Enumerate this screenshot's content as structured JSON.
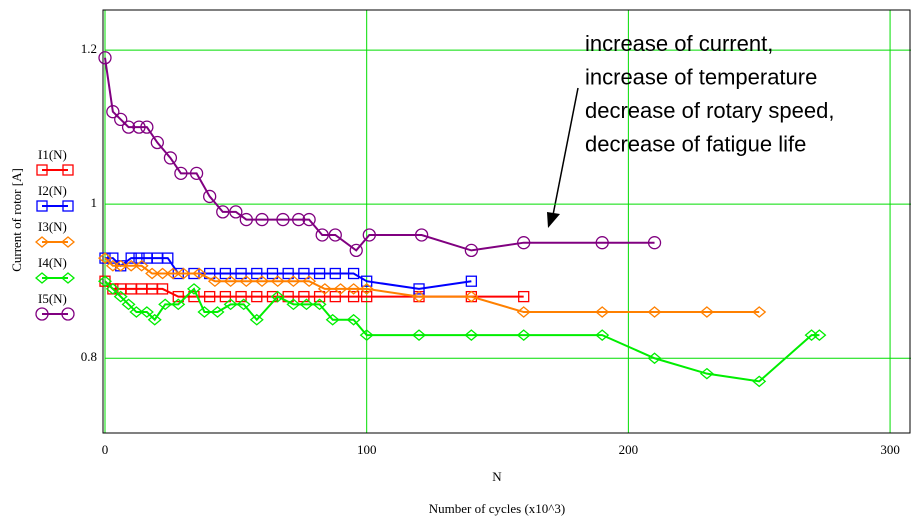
{
  "chart_data": {
    "type": "line",
    "ylabel": "Current of rotor [A]",
    "xlabel": "N",
    "xlabel2": "Number of cycles (x10^3)",
    "annotation": [
      "increase of current,",
      "increase of temperature",
      "decrease of rotary speed,",
      "decrease of fatigue life"
    ],
    "xlim": [
      0,
      308
    ],
    "xticks": [
      0,
      100,
      200,
      300
    ],
    "ylim": [
      0.703,
      1.252
    ],
    "yticks": [
      0.8,
      1,
      1.2
    ],
    "grid": true,
    "series": [
      {
        "name": "I1(N)",
        "color": "#ff0000",
        "marker": "square",
        "x": [
          0,
          3,
          6,
          10,
          14,
          18,
          22,
          28,
          34,
          40,
          46,
          52,
          58,
          64,
          70,
          76,
          82,
          88,
          95,
          100,
          120,
          140,
          160
        ],
        "values": [
          0.9,
          0.89,
          0.89,
          0.89,
          0.89,
          0.89,
          0.89,
          0.88,
          0.88,
          0.88,
          0.88,
          0.88,
          0.88,
          0.88,
          0.88,
          0.88,
          0.88,
          0.88,
          0.88,
          0.88,
          0.88,
          0.88,
          0.88
        ]
      },
      {
        "name": "I2(N)",
        "color": "#0000ff",
        "marker": "square",
        "x": [
          0,
          3,
          6,
          10,
          13,
          16,
          20,
          24,
          28,
          34,
          40,
          46,
          52,
          58,
          64,
          70,
          76,
          82,
          88,
          95,
          100,
          120,
          140
        ],
        "values": [
          0.93,
          0.93,
          0.92,
          0.93,
          0.93,
          0.93,
          0.93,
          0.93,
          0.91,
          0.91,
          0.91,
          0.91,
          0.91,
          0.91,
          0.91,
          0.91,
          0.91,
          0.91,
          0.91,
          0.91,
          0.9,
          0.89,
          0.9
        ]
      },
      {
        "name": "I3(N)",
        "color": "#ff8000",
        "marker": "diamond",
        "x": [
          0,
          3,
          6,
          10,
          14,
          18,
          22,
          26,
          30,
          36,
          42,
          48,
          54,
          60,
          66,
          72,
          78,
          84,
          90,
          95,
          100,
          120,
          140,
          160,
          190,
          210,
          230,
          250
        ],
        "values": [
          0.93,
          0.92,
          0.92,
          0.92,
          0.92,
          0.91,
          0.91,
          0.91,
          0.91,
          0.91,
          0.9,
          0.9,
          0.9,
          0.9,
          0.9,
          0.9,
          0.9,
          0.89,
          0.89,
          0.89,
          0.89,
          0.88,
          0.88,
          0.86,
          0.86,
          0.86,
          0.86,
          0.86
        ]
      },
      {
        "name": "I4(N)",
        "color": "#00ee00",
        "marker": "diamond",
        "x": [
          0,
          3,
          6,
          9,
          12,
          16,
          19,
          23,
          28,
          34,
          38,
          43,
          48,
          53,
          58,
          66,
          72,
          77,
          82,
          87,
          95,
          100,
          120,
          140,
          160,
          190,
          210,
          230,
          250,
          270,
          273
        ],
        "values": [
          0.9,
          0.89,
          0.88,
          0.87,
          0.86,
          0.86,
          0.85,
          0.87,
          0.87,
          0.89,
          0.86,
          0.86,
          0.87,
          0.87,
          0.85,
          0.88,
          0.87,
          0.87,
          0.87,
          0.85,
          0.85,
          0.83,
          0.83,
          0.83,
          0.83,
          0.83,
          0.8,
          0.78,
          0.77,
          0.83,
          0.83
        ]
      },
      {
        "name": "I5(N)",
        "color": "#800080",
        "marker": "circle",
        "x": [
          0,
          3,
          6,
          9,
          13,
          16,
          20,
          25,
          29,
          35,
          40,
          45,
          50,
          54,
          60,
          68,
          74,
          78,
          83,
          88,
          96,
          101,
          121,
          140,
          160,
          190,
          210
        ],
        "values": [
          1.19,
          1.12,
          1.11,
          1.1,
          1.1,
          1.1,
          1.08,
          1.06,
          1.04,
          1.04,
          1.01,
          0.99,
          0.99,
          0.98,
          0.98,
          0.98,
          0.98,
          0.98,
          0.96,
          0.96,
          0.94,
          0.96,
          0.96,
          0.94,
          0.95,
          0.95,
          0.95
        ]
      }
    ]
  }
}
